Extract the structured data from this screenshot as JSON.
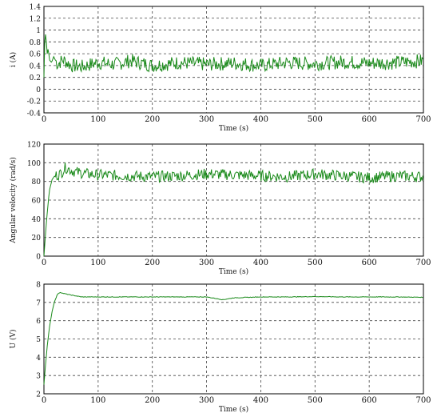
{
  "chart_data": [
    {
      "type": "line",
      "xlabel": "Time (s)",
      "ylabel": "i (A)",
      "xlim": [
        0,
        700
      ],
      "ylim": [
        -0.4,
        1.4
      ],
      "xticks": [
        "0",
        "100",
        "200",
        "300",
        "400",
        "500",
        "600",
        "700"
      ],
      "yticks": [
        "-0.4",
        "-0.2",
        "0",
        "0.2",
        "0.4",
        "0.6",
        "0.8",
        "1",
        "1.2",
        "1.4"
      ],
      "grid": true,
      "line_color": "#1a8a1a",
      "series": [
        {
          "x": [
            0,
            2,
            4,
            6,
            8,
            10,
            14,
            18,
            25,
            35,
            50,
            70,
            100,
            130,
            160,
            200,
            250,
            300,
            350,
            400,
            450,
            500,
            550,
            600,
            650,
            700
          ],
          "values": [
            0.2,
            1.0,
            0.85,
            0.6,
            0.7,
            0.5,
            0.45,
            0.55,
            0.42,
            0.5,
            0.4,
            0.38,
            0.45,
            0.42,
            0.48,
            0.4,
            0.45,
            0.42,
            0.44,
            0.4,
            0.45,
            0.43,
            0.46,
            0.44,
            0.45,
            0.48
          ]
        }
      ]
    },
    {
      "type": "line",
      "xlabel": "Time (s)",
      "ylabel": "Angular velocity (rad/s)",
      "xlim": [
        0,
        700
      ],
      "ylim": [
        0,
        120
      ],
      "xticks": [
        "0",
        "100",
        "200",
        "300",
        "400",
        "500",
        "600",
        "700"
      ],
      "yticks": [
        "0",
        "20",
        "40",
        "60",
        "80",
        "100",
        "120"
      ],
      "grid": true,
      "line_color": "#1a8a1a",
      "series": [
        {
          "x": [
            0,
            5,
            10,
            15,
            20,
            30,
            40,
            50,
            60,
            80,
            100,
            150,
            200,
            250,
            300,
            350,
            400,
            450,
            500,
            550,
            600,
            650,
            700
          ],
          "values": [
            0,
            40,
            70,
            82,
            86,
            88,
            95,
            92,
            90,
            88,
            87,
            86,
            85,
            86,
            88,
            87,
            86,
            85,
            88,
            86,
            84,
            86,
            85
          ]
        }
      ]
    },
    {
      "type": "line",
      "xlabel": "Time (s)",
      "ylabel": "U (V)",
      "xlim": [
        0,
        700
      ],
      "ylim": [
        2,
        8
      ],
      "xticks": [
        "0",
        "100",
        "200",
        "300",
        "400",
        "500",
        "600",
        "700"
      ],
      "yticks": [
        "2",
        "3",
        "4",
        "5",
        "6",
        "7",
        "8"
      ],
      "grid": true,
      "line_color": "#1a8a1a",
      "series": [
        {
          "x": [
            0,
            3,
            6,
            10,
            15,
            20,
            25,
            30,
            35,
            50,
            70,
            100,
            150,
            200,
            250,
            300,
            330,
            350,
            400,
            450,
            500,
            550,
            600,
            650,
            700
          ],
          "values": [
            2.5,
            3.6,
            4.6,
            5.6,
            6.5,
            7.1,
            7.45,
            7.55,
            7.5,
            7.4,
            7.3,
            7.3,
            7.3,
            7.3,
            7.3,
            7.3,
            7.15,
            7.25,
            7.3,
            7.3,
            7.32,
            7.3,
            7.3,
            7.3,
            7.28
          ]
        }
      ]
    }
  ]
}
